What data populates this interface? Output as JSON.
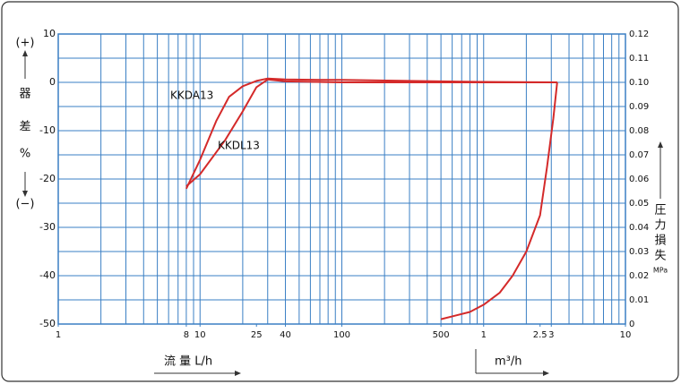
{
  "chart_data": {
    "type": "line",
    "xscale": "log",
    "xlim": [
      1,
      10000
    ],
    "xticks": [
      1,
      8,
      10,
      25,
      40,
      100,
      500,
      {
        "value": 1000,
        "label": "1"
      },
      {
        "value": 2500,
        "label": "2.5"
      },
      {
        "value": 3000,
        "label": "3"
      },
      {
        "value": 10000,
        "label": "10"
      }
    ],
    "xgrid": [
      1,
      2,
      3,
      4,
      5,
      6,
      7,
      8,
      9,
      10,
      20,
      30,
      40,
      50,
      60,
      70,
      80,
      90,
      100,
      200,
      300,
      400,
      500,
      600,
      700,
      800,
      900,
      1000,
      2000,
      3000,
      4000,
      5000,
      6000,
      7000,
      8000,
      9000,
      10000
    ],
    "ylim": [
      -50,
      10
    ],
    "yticks": [
      -50,
      -40,
      -30,
      -20,
      -10,
      0,
      10
    ],
    "ygrid": [
      -50,
      -45,
      -40,
      -35,
      -30,
      -25,
      -20,
      -15,
      -10,
      -5,
      0,
      5,
      10
    ],
    "y2lim": [
      0,
      0.12
    ],
    "y2ticks": [
      0,
      0.01,
      0.02,
      0.03,
      0.04,
      0.05,
      0.06,
      0.07,
      0.08,
      0.09,
      {
        "value": 0.1,
        "label": "0.10"
      },
      0.11,
      0.12
    ],
    "grid": true,
    "grid_color": "#3a7fc4",
    "ylabel_plus": "(+)",
    "ylabel": [
      "器",
      "差",
      "%"
    ],
    "ylabel_minus": "(−)",
    "y2label": [
      "圧",
      "力",
      "損",
      "失"
    ],
    "y2unit": "MPa",
    "xlabel": "流 量 L/h",
    "xlabel2": "m³/h",
    "series": [
      {
        "name": "KKDA13",
        "color": "#d42a2a",
        "x": [
          8,
          10,
          13,
          16,
          20,
          25,
          30,
          40,
          70,
          100,
          300,
          1000,
          3300
        ],
        "values": [
          -22,
          -16,
          -8,
          -3,
          -0.8,
          0.3,
          0.8,
          0.6,
          0.5,
          0.5,
          0.3,
          0.1,
          0
        ]
      },
      {
        "name": "KKDL13",
        "color": "#d42a2a",
        "x": [
          8,
          10,
          15,
          20,
          25,
          30,
          40,
          100,
          500,
          1000,
          3300
        ],
        "values": [
          -21.5,
          -19,
          -12,
          -6,
          -1,
          0.6,
          0.2,
          0,
          0,
          0,
          0
        ]
      },
      {
        "color": "#d42a2a",
        "axis": "y2",
        "x": [
          500,
          800,
          1000,
          1300,
          1600,
          2000,
          2500,
          2800,
          3100,
          3300
        ],
        "values": [
          0.002,
          0.005,
          0.008,
          0.013,
          0.02,
          0.03,
          0.045,
          0.065,
          0.085,
          0.1
        ]
      }
    ]
  }
}
